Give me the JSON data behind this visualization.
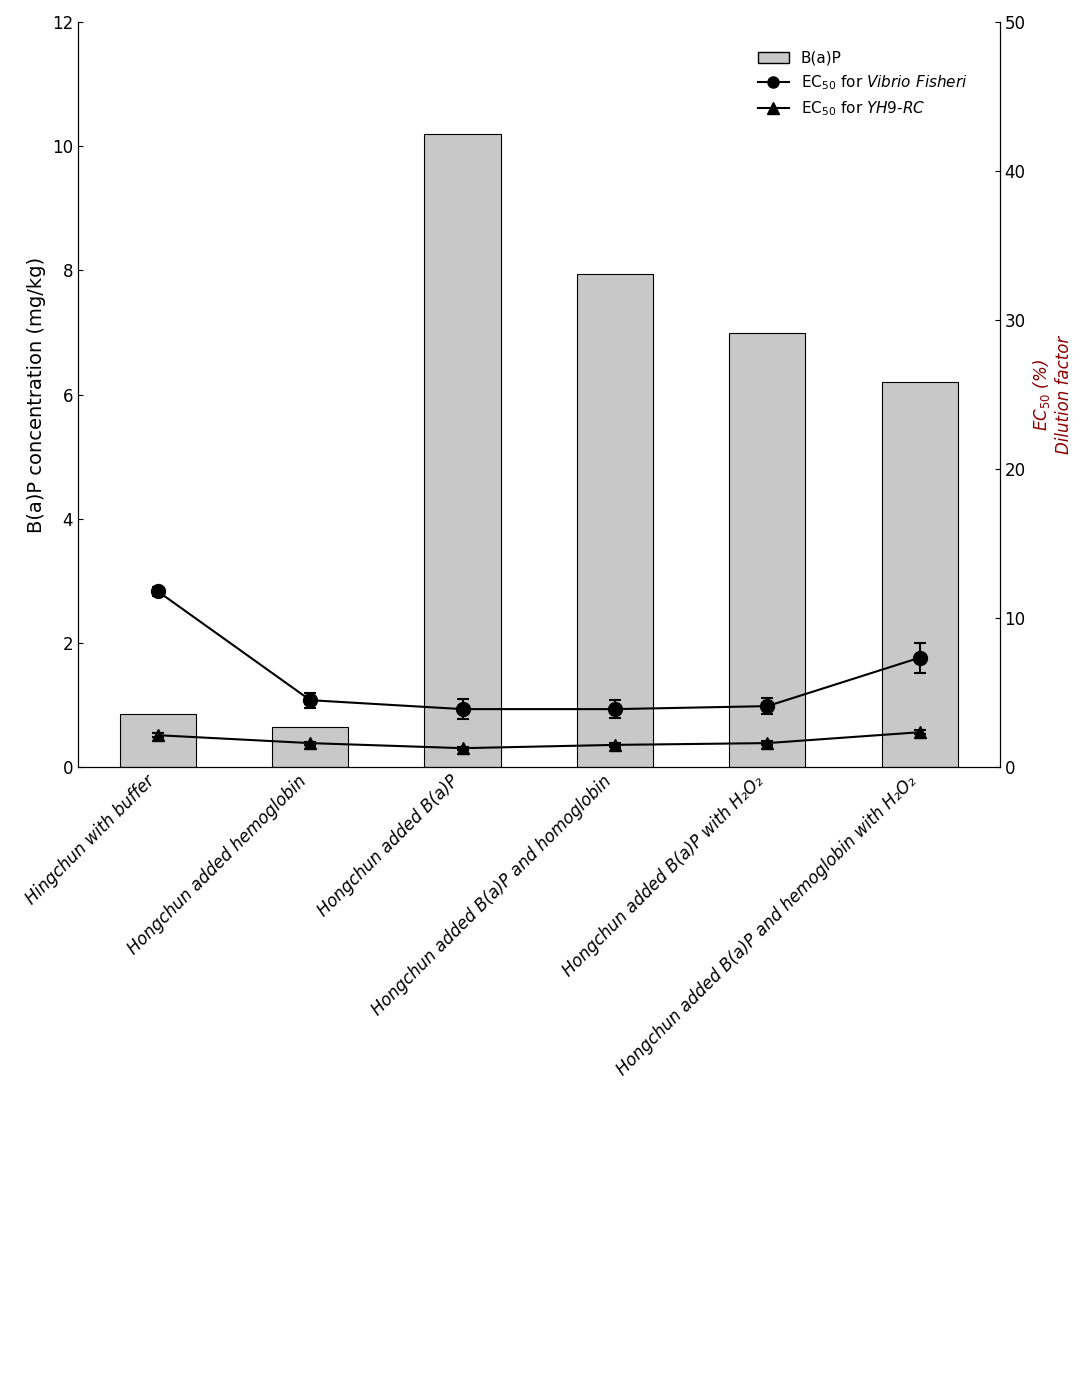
{
  "categories": [
    "Hingchun with buffer",
    "Hongchun added hemoglobin",
    "Hongchun added B(a)P",
    "Hongchun added B(a)P and homoglobin",
    "Hongchun added B(a)P with H₂O₂",
    "Hongchun added B(a)P and hemoglobin with H₂O₂"
  ],
  "bar_values": [
    0.85,
    0.65,
    10.2,
    7.95,
    7.0,
    6.2
  ],
  "bar_color": "#c8c8c8",
  "ec50_vibrio": [
    11.8,
    4.5,
    3.9,
    3.9,
    4.1,
    7.35
  ],
  "ec50_vibrio_err": [
    0.3,
    0.5,
    0.65,
    0.6,
    0.55,
    1.0
  ],
  "ec50_yh9": [
    2.15,
    1.62,
    1.28,
    1.5,
    1.62,
    2.35
  ],
  "ec50_yh9_err": [
    0.12,
    0.1,
    0.1,
    0.12,
    0.12,
    0.12
  ],
  "ylim_left": [
    0,
    12
  ],
  "ylim_right": [
    0,
    50
  ],
  "ylabel_left": "B(a)P concentration (mg/kg)",
  "ylabel_right": "EC₅₀ (%)\nDilution factor",
  "legend_bar": "B(a)P",
  "legend_vibrio": "EC₅₀ for Vibrio Fisheri",
  "legend_yh9": "EC₅₀ for YH9-RC",
  "figsize": [
    10.88,
    13.95
  ],
  "dpi": 100
}
